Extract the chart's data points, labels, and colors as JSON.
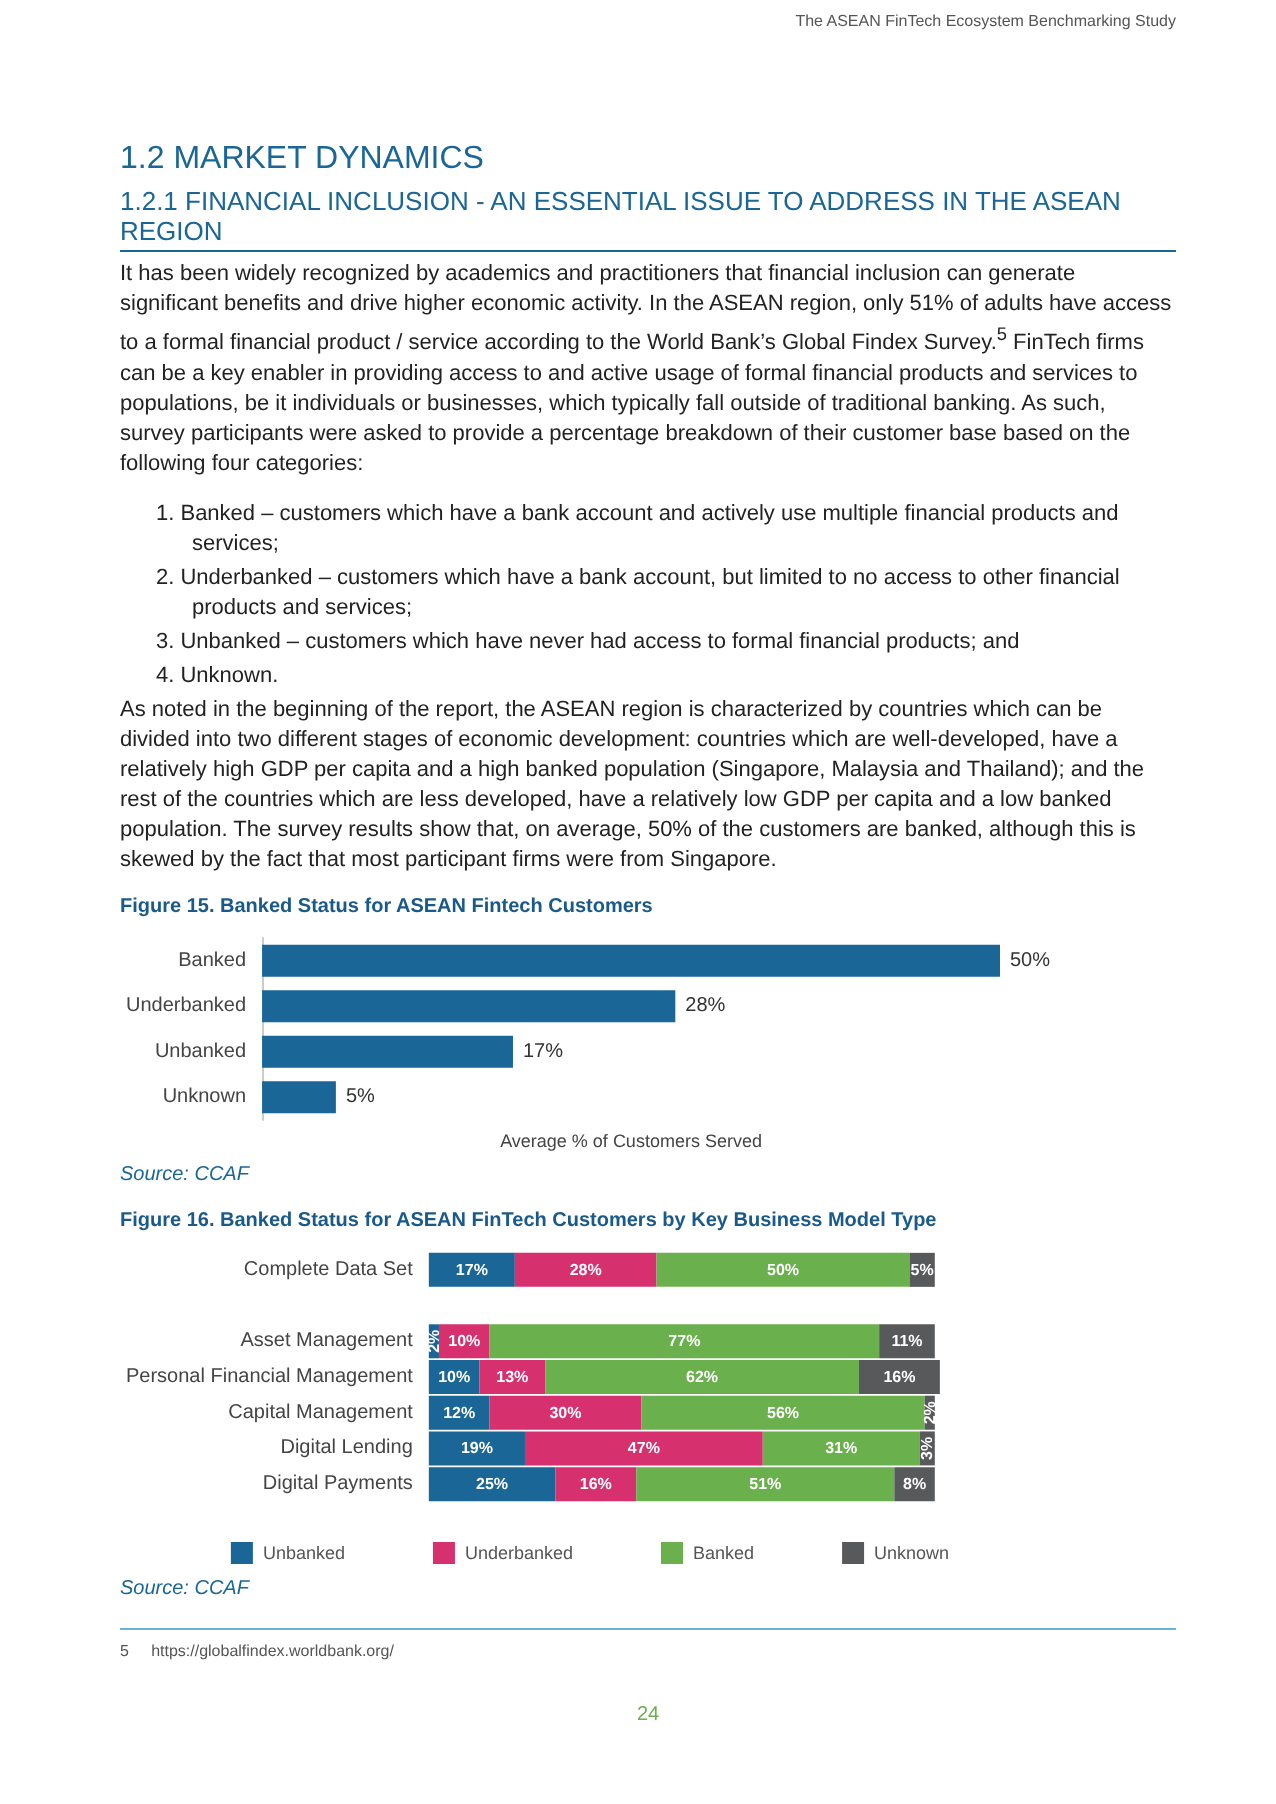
{
  "chart_data": [
    {
      "type": "bar",
      "orientation": "horizontal",
      "title": "Figure 15. Banked Status for ASEAN Fintech Customers",
      "xlabel": "Average % of Customers Served",
      "categories": [
        "Banked",
        "Underbanked",
        "Unbanked",
        "Unknown"
      ],
      "values": [
        50,
        28,
        17,
        5
      ],
      "value_labels": [
        "50%",
        "28%",
        "17%",
        "5%"
      ],
      "color": "#1a6696",
      "grid": false,
      "legend": false,
      "annotations": [
        "The ASEAN FinTech Ecosystem  Benchmarking Study",
        "1.2  MARKET DYNAMICS",
        "1.2.1  FINANCIAL INCLUSION - AN ESSENTIAL ISSUE TO ADDRESS IN THE ASEAN REGION",
        "It has been widely recognized by academics and practitioners that financial inclusion can generate significant benefits and drive higher economic activity. In the ASEAN region, only 51% of adults have access to a formal financial product / service according to the World Bank’s Global Findex Survey.$^{5}$ FinTech firms can be a key enabler in providing access to and active usage of formal financial products and services to populations, be it individuals or businesses, which typically fall outside of traditional banking. As such, survey participants were asked to provide a percentage breakdown of their customer base based on the following four categories:",
        "1.  Banked – customers which have a bank account and actively use multiple financial products and services;",
        "2.  Underbanked – customers which have a bank account, but limited to no access to other financial products and services;",
        "3.  Unbanked – customers which have never had access to formal financial products; and",
        "4.  Unknown.",
        "As noted in the beginning of the report, the ASEAN region is characterized by countries which can be divided into two different stages of economic development: countries which are well-developed, have a relatively high GDP per capita and a high banked population (Singapore, Malaysia and Thailand); and the rest of the countries which are less developed, have a relatively low GDP per capita and a low banked population. The survey results show that, on average, 50% of the customers are banked, although this is skewed by the fact that most participant firms were from Singapore.",
        "Source: CCAF"
      ]
    },
    {
      "type": "bar",
      "orientation": "horizontal",
      "stacked": true,
      "title": "Figure 16. Banked Status for ASEAN FinTech Customers by Key Business Model Type",
      "categories": [
        "Complete Data Set",
        null,
        "Asset Management",
        "Personal Financial Management",
        "Capital Management",
        "Digital Lending",
        "Digital Payments"
      ],
      "legend": "bottom",
      "grid": false,
      "series": [
        {
          "name": "Unbanked",
          "color": "#1a6696",
          "values": [
            17,
            null,
            2,
            10,
            12,
            19,
            25
          ],
          "value_labels": [
            "17%",
            null,
            "2%",
            "10%",
            "12%",
            "19%",
            "25%"
          ]
        },
        {
          "name": "Underbanked",
          "color": "#d6306f",
          "values": [
            28,
            null,
            10,
            13,
            30,
            47,
            16
          ],
          "value_labels": [
            "28%",
            null,
            "10%",
            "13%",
            "30%",
            "47%",
            "16%"
          ]
        },
        {
          "name": "Banked",
          "color": "#6ab04c",
          "values": [
            50,
            null,
            77,
            62,
            56,
            31,
            51
          ],
          "value_labels": [
            "50%",
            null,
            "77%",
            "62%",
            "56%",
            "31%",
            "51%"
          ]
        },
        {
          "name": "Unknown",
          "color": "#58595b",
          "values": [
            5,
            null,
            11,
            16,
            2,
            3,
            8
          ],
          "value_labels": [
            "5%",
            null,
            "11%",
            "16%",
            "2%",
            "3%",
            "8%"
          ]
        }
      ],
      "annotations": [
        "Source: CCAF",
        "5     https://globalfindex.worldbank.org/",
        "24"
      ]
    }
  ]
}
